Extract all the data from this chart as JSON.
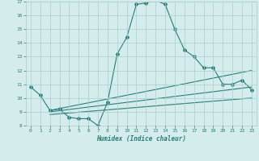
{
  "line1_x": [
    0,
    1,
    2,
    3,
    4,
    5,
    6,
    7,
    8,
    9,
    10,
    11,
    12,
    13,
    14,
    15,
    16,
    17,
    18,
    19,
    20,
    21,
    22,
    23
  ],
  "line1_y": [
    10.8,
    10.2,
    9.1,
    9.2,
    8.6,
    8.5,
    8.5,
    8.0,
    9.7,
    13.2,
    14.4,
    16.8,
    16.9,
    17.1,
    16.8,
    15.0,
    13.5,
    13.0,
    12.2,
    12.2,
    11.0,
    11.0,
    11.3,
    10.6
  ],
  "line2_x": [
    2,
    23
  ],
  "line2_y": [
    9.1,
    12.0
  ],
  "line3_x": [
    2,
    23
  ],
  "line3_y": [
    9.0,
    10.8
  ],
  "line4_x": [
    2,
    23
  ],
  "line4_y": [
    8.8,
    10.0
  ],
  "color": "#2a7d78",
  "bg_color": "#d4ecec",
  "grid_color": "#aacfcf",
  "xlim": [
    -0.5,
    23.5
  ],
  "ylim": [
    8,
    17
  ],
  "yticks": [
    8,
    9,
    10,
    11,
    12,
    13,
    14,
    15,
    16,
    17
  ],
  "xticks": [
    0,
    1,
    2,
    3,
    4,
    5,
    6,
    7,
    8,
    9,
    10,
    11,
    12,
    13,
    14,
    15,
    16,
    17,
    18,
    19,
    20,
    21,
    22,
    23
  ],
  "xlabel": "Humidex (Indice chaleur)",
  "marker": "D",
  "markersize": 2.0,
  "linewidth": 0.8
}
